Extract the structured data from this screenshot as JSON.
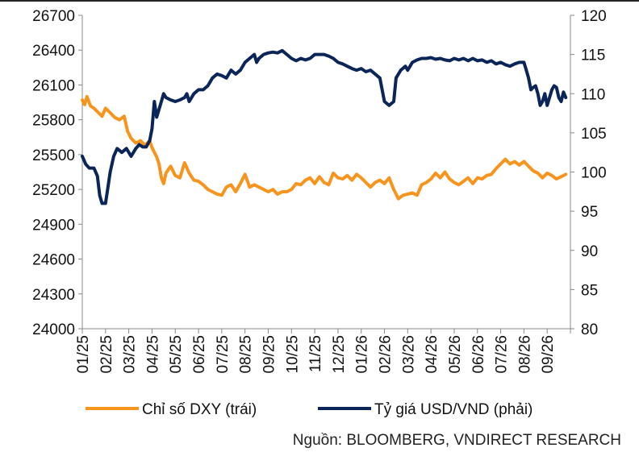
{
  "chart_data": {
    "type": "line",
    "x": [
      "01/25",
      "02/25",
      "03/25",
      "04/25",
      "05/25",
      "06/25",
      "07/25",
      "08/25",
      "09/25",
      "10/25",
      "11/25",
      "12/25",
      "01/26",
      "02/26",
      "03/26",
      "04/26",
      "05/26",
      "06/26",
      "07/26",
      "08/26",
      "09/26"
    ],
    "y_left_ticks": [
      "24000",
      "24300",
      "24600",
      "24900",
      "25200",
      "25500",
      "25800",
      "26100",
      "26400",
      "26700"
    ],
    "y_right_ticks": [
      "80",
      "85",
      "90",
      "95",
      "100",
      "105",
      "110",
      "115",
      "120"
    ],
    "ylim_left": [
      24000,
      26700
    ],
    "ylim_right": [
      80,
      120
    ],
    "series": [
      {
        "name": "Chỉ số DXY (trái)",
        "axis": "left",
        "color": "#F7941D",
        "values": [
          [
            0,
            25970
          ],
          [
            0.1,
            25930
          ],
          [
            0.2,
            26000
          ],
          [
            0.35,
            25920
          ],
          [
            0.5,
            25900
          ],
          [
            0.7,
            25860
          ],
          [
            0.85,
            25830
          ],
          [
            1.0,
            25900
          ],
          [
            1.2,
            25860
          ],
          [
            1.4,
            25820
          ],
          [
            1.6,
            25800
          ],
          [
            1.8,
            25830
          ],
          [
            1.95,
            25700
          ],
          [
            2.1,
            25640
          ],
          [
            2.3,
            25600
          ],
          [
            2.5,
            25620
          ],
          [
            2.7,
            25580
          ],
          [
            2.9,
            25620
          ],
          [
            3.0,
            25560
          ],
          [
            3.1,
            25520
          ],
          [
            3.2,
            25480
          ],
          [
            3.3,
            25420
          ],
          [
            3.4,
            25300
          ],
          [
            3.5,
            25250
          ],
          [
            3.6,
            25340
          ],
          [
            3.8,
            25400
          ],
          [
            4.0,
            25320
          ],
          [
            4.2,
            25300
          ],
          [
            4.4,
            25430
          ],
          [
            4.6,
            25340
          ],
          [
            4.8,
            25280
          ],
          [
            5.0,
            25270
          ],
          [
            5.2,
            25240
          ],
          [
            5.4,
            25200
          ],
          [
            5.6,
            25180
          ],
          [
            5.8,
            25160
          ],
          [
            6.0,
            25150
          ],
          [
            6.2,
            25220
          ],
          [
            6.4,
            25240
          ],
          [
            6.6,
            25180
          ],
          [
            6.8,
            25250
          ],
          [
            7.0,
            25330
          ],
          [
            7.2,
            25220
          ],
          [
            7.4,
            25240
          ],
          [
            7.6,
            25220
          ],
          [
            7.8,
            25200
          ],
          [
            8.0,
            25180
          ],
          [
            8.2,
            25200
          ],
          [
            8.4,
            25160
          ],
          [
            8.6,
            25180
          ],
          [
            8.8,
            25180
          ],
          [
            9.0,
            25200
          ],
          [
            9.2,
            25250
          ],
          [
            9.4,
            25240
          ],
          [
            9.6,
            25280
          ],
          [
            9.8,
            25300
          ],
          [
            10.0,
            25250
          ],
          [
            10.2,
            25310
          ],
          [
            10.4,
            25260
          ],
          [
            10.6,
            25240
          ],
          [
            10.8,
            25340
          ],
          [
            11.0,
            25300
          ],
          [
            11.2,
            25290
          ],
          [
            11.4,
            25320
          ],
          [
            11.6,
            25280
          ],
          [
            11.8,
            25330
          ],
          [
            12.0,
            25300
          ],
          [
            12.2,
            25260
          ],
          [
            12.4,
            25220
          ],
          [
            12.6,
            25260
          ],
          [
            12.8,
            25280
          ],
          [
            13.0,
            25250
          ],
          [
            13.2,
            25300
          ],
          [
            13.4,
            25200
          ],
          [
            13.6,
            25120
          ],
          [
            13.8,
            25150
          ],
          [
            14.0,
            25160
          ],
          [
            14.2,
            25170
          ],
          [
            14.4,
            25150
          ],
          [
            14.6,
            25240
          ],
          [
            14.8,
            25260
          ],
          [
            15.0,
            25290
          ],
          [
            15.2,
            25340
          ],
          [
            15.4,
            25300
          ],
          [
            15.6,
            25350
          ],
          [
            15.8,
            25290
          ],
          [
            16.0,
            25260
          ],
          [
            16.2,
            25240
          ],
          [
            16.4,
            25270
          ],
          [
            16.6,
            25300
          ],
          [
            16.8,
            25250
          ],
          [
            17.0,
            25300
          ],
          [
            17.2,
            25290
          ],
          [
            17.4,
            25320
          ],
          [
            17.6,
            25330
          ],
          [
            17.8,
            25380
          ],
          [
            18.0,
            25420
          ],
          [
            18.2,
            25460
          ],
          [
            18.4,
            25420
          ],
          [
            18.6,
            25440
          ],
          [
            18.8,
            25410
          ],
          [
            19.0,
            25440
          ],
          [
            19.2,
            25400
          ],
          [
            19.4,
            25360
          ],
          [
            19.6,
            25340
          ],
          [
            19.8,
            25300
          ],
          [
            20.0,
            25340
          ],
          [
            20.2,
            25320
          ],
          [
            20.4,
            25290
          ],
          [
            20.6,
            25310
          ],
          [
            20.8,
            25330
          ]
        ]
      },
      {
        "name": "Tỷ giá USD/VND (phải)",
        "axis": "right",
        "color": "#0B2559",
        "values": [
          [
            0,
            102
          ],
          [
            0.15,
            101
          ],
          [
            0.3,
            100.5
          ],
          [
            0.5,
            100.5
          ],
          [
            0.65,
            99.5
          ],
          [
            0.75,
            97
          ],
          [
            0.85,
            96
          ],
          [
            1.0,
            96
          ],
          [
            1.1,
            98
          ],
          [
            1.2,
            100
          ],
          [
            1.35,
            102
          ],
          [
            1.5,
            103
          ],
          [
            1.7,
            102.5
          ],
          [
            1.9,
            103
          ],
          [
            2.1,
            102
          ],
          [
            2.3,
            103
          ],
          [
            2.45,
            103.5
          ],
          [
            2.6,
            103.2
          ],
          [
            2.75,
            103.2
          ],
          [
            2.9,
            104
          ],
          [
            3.0,
            105.5
          ],
          [
            3.1,
            109
          ],
          [
            3.2,
            107
          ],
          [
            3.3,
            108
          ],
          [
            3.4,
            109
          ],
          [
            3.5,
            110
          ],
          [
            3.6,
            109.5
          ],
          [
            3.8,
            109.2
          ],
          [
            4.0,
            109
          ],
          [
            4.2,
            109.2
          ],
          [
            4.4,
            109.5
          ],
          [
            4.5,
            110
          ],
          [
            4.6,
            109
          ],
          [
            4.8,
            110
          ],
          [
            5.0,
            110.5
          ],
          [
            5.2,
            110.5
          ],
          [
            5.4,
            111
          ],
          [
            5.6,
            112
          ],
          [
            5.8,
            112.5
          ],
          [
            6.0,
            112.3
          ],
          [
            6.2,
            112
          ],
          [
            6.4,
            113
          ],
          [
            6.6,
            112.5
          ],
          [
            6.8,
            113
          ],
          [
            7.0,
            114
          ],
          [
            7.2,
            114.5
          ],
          [
            7.4,
            115
          ],
          [
            7.5,
            114
          ],
          [
            7.6,
            114.5
          ],
          [
            7.8,
            115
          ],
          [
            8.0,
            115.2
          ],
          [
            8.2,
            115.3
          ],
          [
            8.4,
            115.2
          ],
          [
            8.6,
            115.5
          ],
          [
            8.8,
            115
          ],
          [
            9.0,
            114.5
          ],
          [
            9.2,
            114.2
          ],
          [
            9.4,
            114.5
          ],
          [
            9.6,
            114.3
          ],
          [
            9.8,
            114.5
          ],
          [
            10.0,
            115
          ],
          [
            10.2,
            115
          ],
          [
            10.4,
            115
          ],
          [
            10.6,
            114.8
          ],
          [
            10.8,
            114.5
          ],
          [
            11.0,
            114
          ],
          [
            11.2,
            113.8
          ],
          [
            11.4,
            113.5
          ],
          [
            11.6,
            113.2
          ],
          [
            11.8,
            113
          ],
          [
            12.0,
            113.2
          ],
          [
            12.2,
            112.8
          ],
          [
            12.4,
            113
          ],
          [
            12.6,
            112.5
          ],
          [
            12.8,
            112
          ],
          [
            13.0,
            109
          ],
          [
            13.2,
            108.5
          ],
          [
            13.4,
            109
          ],
          [
            13.5,
            112
          ],
          [
            13.7,
            113
          ],
          [
            13.9,
            113.5
          ],
          [
            14.0,
            113
          ],
          [
            14.2,
            114
          ],
          [
            14.4,
            114.3
          ],
          [
            14.6,
            114.5
          ],
          [
            14.8,
            114.5
          ],
          [
            15.0,
            114.6
          ],
          [
            15.2,
            114.4
          ],
          [
            15.4,
            114.5
          ],
          [
            15.6,
            114.3
          ],
          [
            15.8,
            114.2
          ],
          [
            16.0,
            114.5
          ],
          [
            16.2,
            114.3
          ],
          [
            16.4,
            114.5
          ],
          [
            16.6,
            114.2
          ],
          [
            16.8,
            114.5
          ],
          [
            17.0,
            114.2
          ],
          [
            17.2,
            114.3
          ],
          [
            17.4,
            114
          ],
          [
            17.6,
            114.2
          ],
          [
            17.8,
            113.8
          ],
          [
            18.0,
            114
          ],
          [
            18.2,
            113.7
          ],
          [
            18.4,
            113.5
          ],
          [
            18.6,
            113.8
          ],
          [
            18.8,
            114
          ],
          [
            19.0,
            114
          ],
          [
            19.1,
            113
          ],
          [
            19.2,
            112
          ],
          [
            19.3,
            110.5
          ],
          [
            19.4,
            110.8
          ],
          [
            19.5,
            111
          ],
          [
            19.6,
            110
          ],
          [
            19.7,
            108.5
          ],
          [
            19.8,
            109
          ],
          [
            19.9,
            110
          ],
          [
            20.0,
            108.5
          ],
          [
            20.1,
            109.5
          ],
          [
            20.2,
            110.5
          ],
          [
            20.3,
            111
          ],
          [
            20.4,
            110.8
          ],
          [
            20.5,
            109.5
          ],
          [
            20.6,
            109
          ],
          [
            20.7,
            110.2
          ],
          [
            20.8,
            109.5
          ]
        ]
      }
    ],
    "legend": [
      {
        "label": "Chỉ số DXY (trái)",
        "color": "#F7941D"
      },
      {
        "label": "Tỷ giá USD/VND (phải)",
        "color": "#0B2559"
      }
    ],
    "legend_placement": "bottom",
    "grid": false
  },
  "source": "Nguồn: BLOOMBERG, VNDIRECT RESEARCH"
}
